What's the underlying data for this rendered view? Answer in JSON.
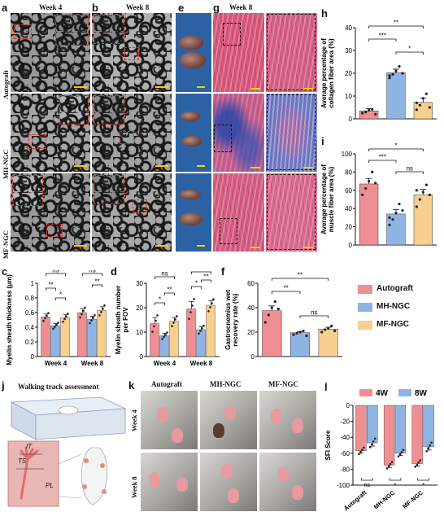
{
  "panel_letters": [
    "a",
    "b",
    "e",
    "g",
    "h",
    "i",
    "c",
    "d",
    "f",
    "j",
    "k",
    "l"
  ],
  "tem_headers": {
    "a": "Week 4",
    "b": "Week 8",
    "g": "Week 8"
  },
  "row_labels": [
    "Autograft",
    "MH-NGC",
    "MF-NGC"
  ],
  "j_title": "Walking track assessment",
  "j_labels": [
    "IT",
    "TS",
    "PL"
  ],
  "k_headers": [
    "Autograft",
    "MH-NGC",
    "MF-NGC"
  ],
  "k_rows": [
    "Week 4",
    "Week 8"
  ],
  "legend_f": [
    {
      "name": "Autograft",
      "color": "#f08f93"
    },
    {
      "name": "MH-NGC",
      "color": "#8fb4e3"
    },
    {
      "name": "MF-NGC",
      "color": "#f7cf8e"
    }
  ],
  "legend_l": [
    {
      "name": "4W",
      "color": "#f08f93"
    },
    {
      "name": "8W",
      "color": "#8fb4e3"
    }
  ],
  "colors": {
    "autograft": "#f08f93",
    "mh": "#8fb4e3",
    "mf": "#f7cf8e"
  },
  "chart_data": [
    {
      "panel": "h",
      "type": "bar",
      "ylabel": "Average percentage of collagen fiber area (%)",
      "ylim": [
        0,
        40
      ],
      "yticks": [
        0,
        10,
        20,
        30,
        40
      ],
      "categories": [
        "Autograft",
        "MH-NGC",
        "MF-NGC"
      ],
      "values": [
        3.5,
        20.2,
        7.2
      ],
      "errors": [
        1.0,
        1.6,
        2.0
      ],
      "points": [
        [
          2.5,
          3.0,
          3.8,
          4.2,
          2.0
        ],
        [
          18.0,
          19.5,
          21.0,
          23.0,
          20.0,
          19.0
        ],
        [
          4.0,
          6.0,
          9.0,
          11.0,
          5.0,
          7.0
        ]
      ],
      "significance": [
        {
          "pair": [
            0,
            2
          ],
          "label": "**"
        },
        {
          "pair": [
            0,
            1
          ],
          "label": "***"
        },
        {
          "pair": [
            1,
            2
          ],
          "label": "*"
        }
      ]
    },
    {
      "panel": "i",
      "type": "bar",
      "ylabel": "Average percentage of muscle fiber area (%)",
      "ylim": [
        0,
        100
      ],
      "yticks": [
        0,
        20,
        40,
        60,
        80,
        100
      ],
      "categories": [
        "Autograft",
        "MH-NGC",
        "MF-NGC"
      ],
      "values": [
        67,
        34,
        55
      ],
      "errors": [
        6,
        5,
        6
      ],
      "points": [
        [
          55,
          62,
          70,
          80,
          68
        ],
        [
          22,
          28,
          35,
          45,
          38,
          30
        ],
        [
          42,
          50,
          58,
          66,
          55,
          60
        ]
      ],
      "significance": [
        {
          "pair": [
            0,
            2
          ],
          "label": "*"
        },
        {
          "pair": [
            0,
            1
          ],
          "label": "***"
        },
        {
          "pair": [
            1,
            2
          ],
          "label": "ns"
        }
      ]
    },
    {
      "panel": "c",
      "type": "bar",
      "ylabel": "Myelin sheath thickness (μm)",
      "ylim": [
        0,
        1.0
      ],
      "yticks": [
        0.0,
        0.2,
        0.4,
        0.6,
        0.8,
        1.0
      ],
      "categories": [
        "Week 4",
        "Week 8"
      ],
      "series": [
        {
          "name": "Autograft",
          "values": [
            0.54,
            0.6
          ],
          "errors": [
            0.04,
            0.05
          ]
        },
        {
          "name": "MH-NGC",
          "values": [
            0.42,
            0.51
          ],
          "errors": [
            0.03,
            0.04
          ]
        },
        {
          "name": "MF-NGC",
          "values": [
            0.53,
            0.63
          ],
          "errors": [
            0.04,
            0.05
          ]
        }
      ],
      "significance": [
        {
          "label": "ns"
        },
        {
          "label": "**"
        },
        {
          "label": "*"
        },
        {
          "label": "ns"
        },
        {
          "label": "**"
        }
      ]
    },
    {
      "panel": "d",
      "type": "bar",
      "ylabel": "Myelin sheath number per FOV",
      "ylim": [
        0,
        30
      ],
      "yticks": [
        0,
        10,
        20,
        30
      ],
      "categories": [
        "Week 4",
        "Week 8"
      ],
      "series": [
        {
          "name": "Autograft",
          "values": [
            13.5,
            19.5
          ],
          "errors": [
            2.5,
            3.0
          ]
        },
        {
          "name": "MH-NGC",
          "values": [
            8.5,
            11.0
          ],
          "errors": [
            1.0,
            1.2
          ]
        },
        {
          "name": "MF-NGC",
          "values": [
            14.5,
            21.0
          ],
          "errors": [
            1.5,
            1.8
          ]
        }
      ],
      "significance": [
        {
          "label": "ns"
        },
        {
          "label": "*"
        },
        {
          "label": "**"
        },
        {
          "label": "*"
        },
        {
          "label": "*"
        },
        {
          "label": "**"
        }
      ]
    },
    {
      "panel": "f",
      "type": "bar",
      "ylabel": "Gastrocnemius wet recovery rate (%)",
      "ylim": [
        0,
        60
      ],
      "yticks": [
        0,
        20,
        40,
        60
      ],
      "categories": [
        "Autograft",
        "MH-NGC",
        "MF-NGC"
      ],
      "values": [
        37.5,
        19.5,
        22.5
      ],
      "errors": [
        4.0,
        1.0,
        1.5
      ],
      "points": [
        [
          28,
          34,
          40,
          45,
          39
        ],
        [
          18,
          19,
          20,
          21,
          17
        ],
        [
          20,
          22,
          23,
          25,
          21
        ]
      ],
      "significance": [
        {
          "pair": [
            0,
            2
          ],
          "label": "**"
        },
        {
          "pair": [
            0,
            1
          ],
          "label": "**"
        },
        {
          "pair": [
            1,
            2
          ],
          "label": "ns"
        }
      ]
    },
    {
      "panel": "l",
      "type": "bar",
      "ylabel": "SFI Score",
      "ylim": [
        -100,
        0
      ],
      "yticks": [
        0,
        -20,
        -40,
        -60,
        -80,
        -100
      ],
      "categories": [
        "Autograft",
        "MH-NGC",
        "MF-NGC"
      ],
      "series": [
        {
          "name": "4W",
          "values": [
            -57,
            -75,
            -73
          ],
          "errors": [
            3,
            3,
            3
          ]
        },
        {
          "name": "8W",
          "values": [
            -47,
            -60,
            -52
          ],
          "errors": [
            4,
            3,
            4
          ]
        }
      ],
      "significance": [
        {
          "label": "ns"
        },
        {
          "label": "*"
        },
        {
          "label": "*"
        }
      ]
    }
  ]
}
